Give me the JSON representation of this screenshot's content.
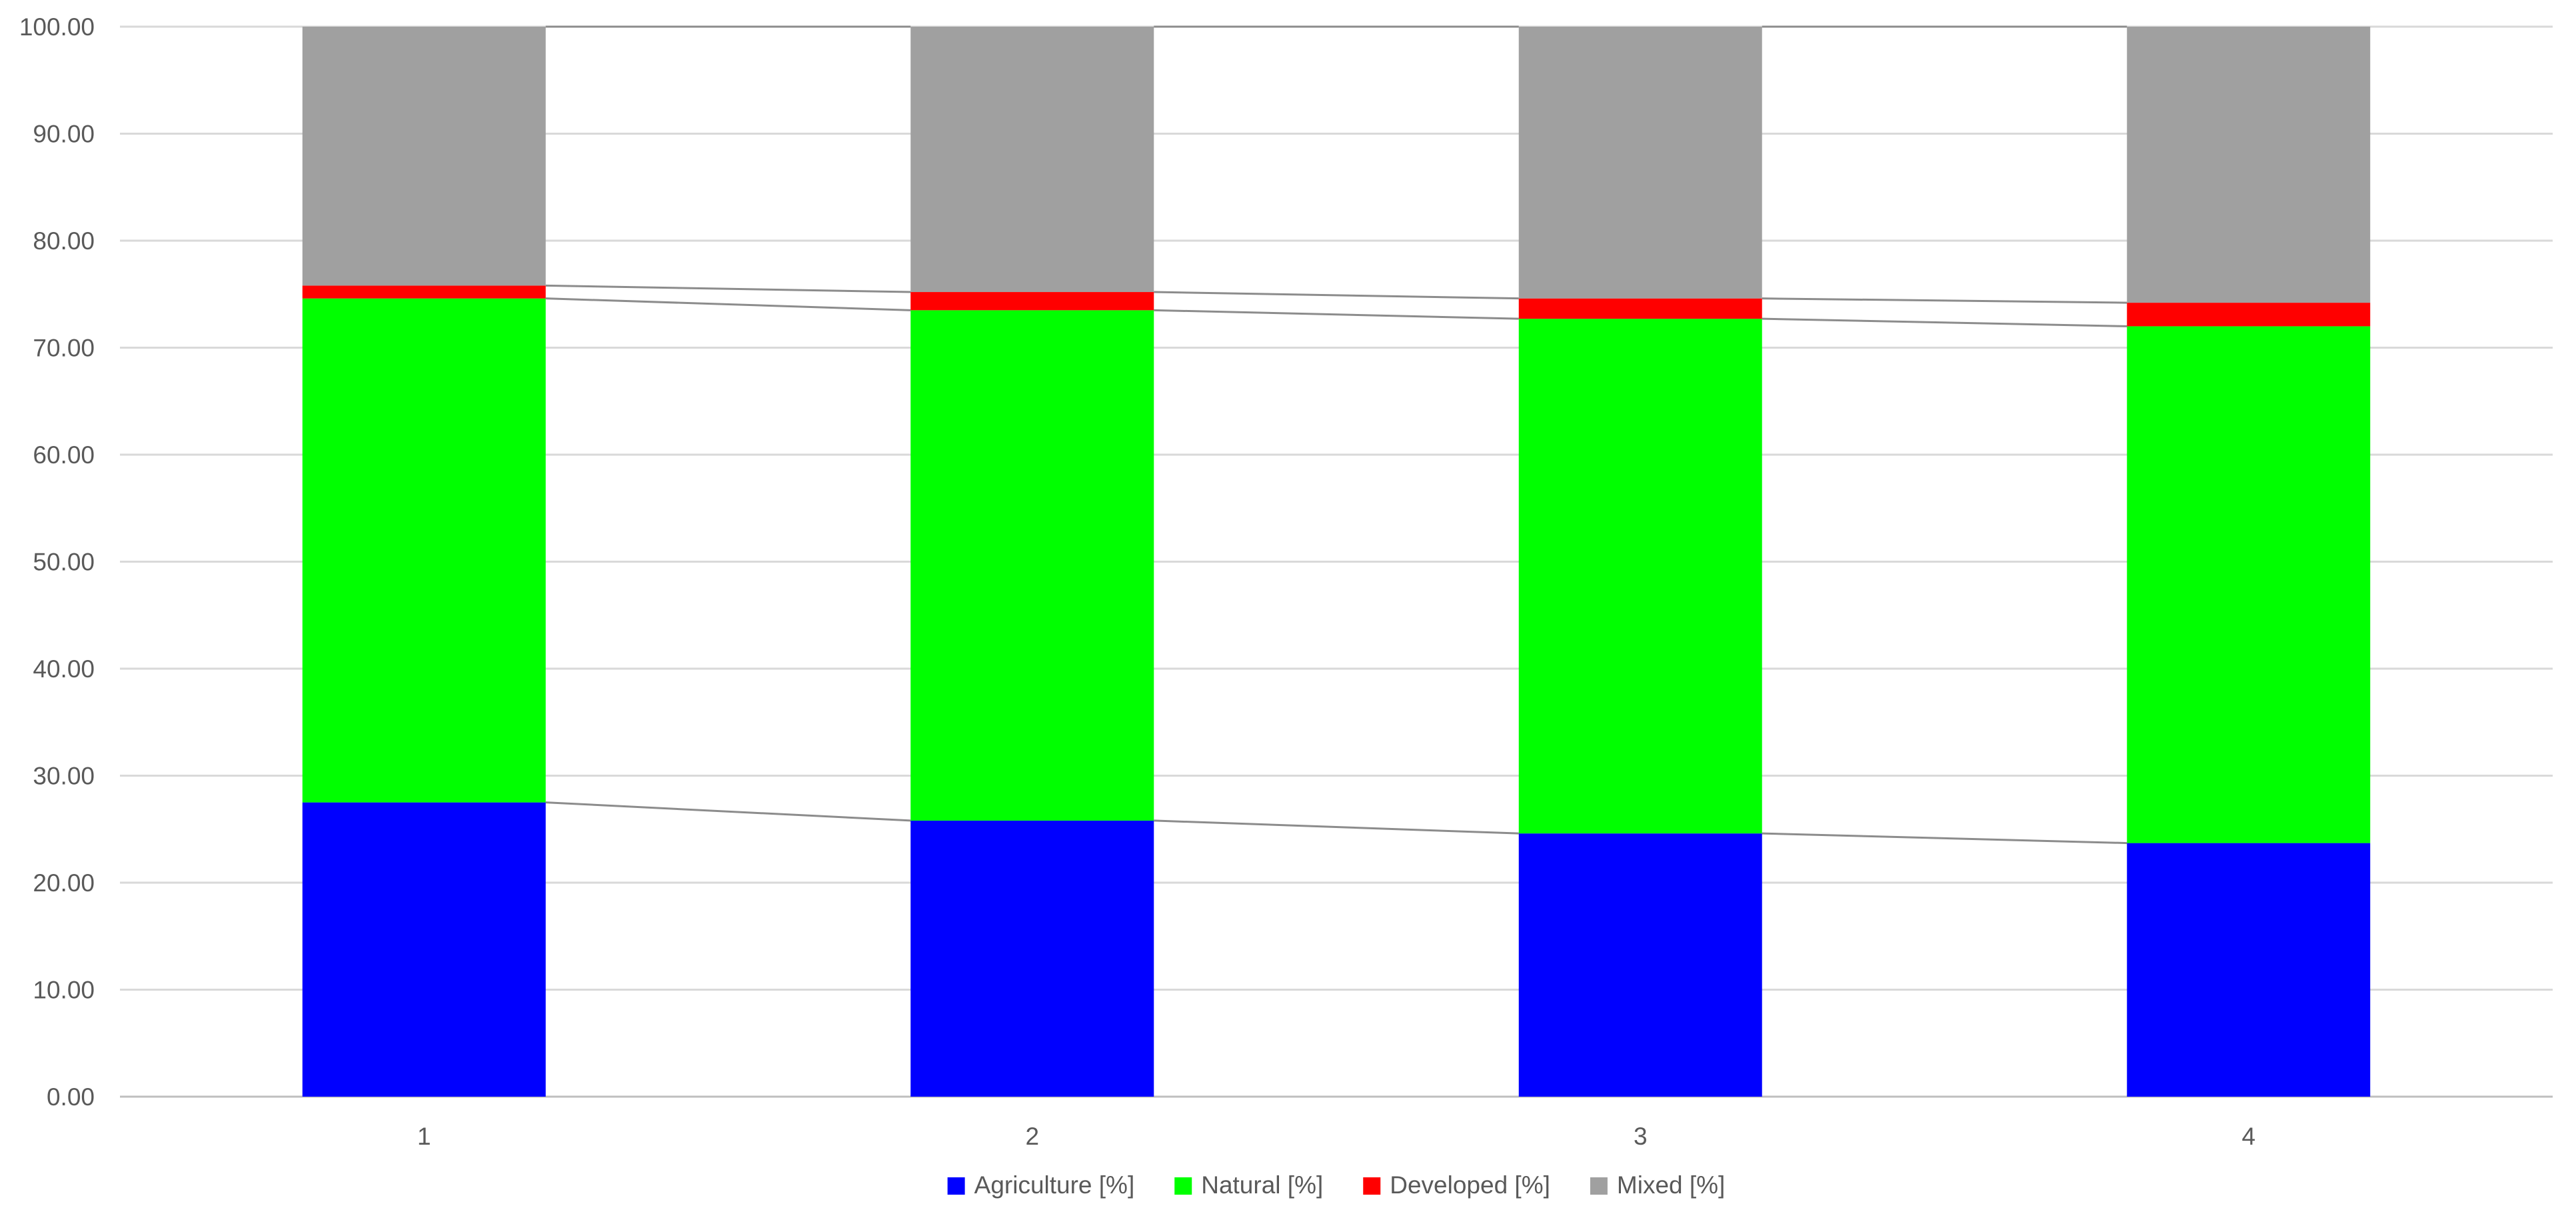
{
  "chart_data": {
    "type": "bar",
    "stacked": true,
    "categories": [
      "1",
      "2",
      "3",
      "4"
    ],
    "series": [
      {
        "name": "Agriculture [%]",
        "color": "#0000ff",
        "values": [
          27.5,
          25.8,
          24.6,
          23.7
        ]
      },
      {
        "name": "Natural [%]",
        "color": "#00ff00",
        "values": [
          47.1,
          47.7,
          48.1,
          48.3
        ]
      },
      {
        "name": "Developed [%]",
        "color": "#ff0000",
        "values": [
          1.2,
          1.7,
          1.9,
          2.2
        ]
      },
      {
        "name": "Mixed [%]",
        "color": "#a0a0a0",
        "values": [
          24.2,
          24.8,
          25.4,
          25.8
        ]
      }
    ],
    "series_lines": true,
    "ylim": [
      0,
      100
    ],
    "yticks": [
      "0.00",
      "10.00",
      "20.00",
      "30.00",
      "40.00",
      "50.00",
      "60.00",
      "70.00",
      "80.00",
      "90.00",
      "100.00"
    ],
    "grid": true,
    "legend_position": "bottom"
  },
  "colors": {
    "grid": "#d9d9d9",
    "axis": "#bfbfbf",
    "series_line": "#8c8c8c",
    "text": "#595959"
  }
}
